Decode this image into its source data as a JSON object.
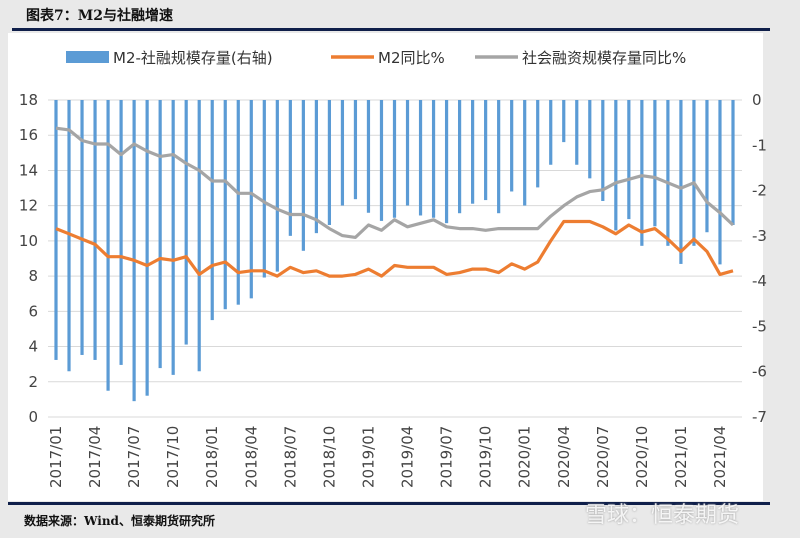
{
  "header": {
    "title": "图表7：M2与社融增速"
  },
  "footer": {
    "source": "数据来源：Wind、恒泰期货研究所",
    "watermark": "雪球：恒泰期货"
  },
  "chart_data": {
    "type": "bar+line",
    "categories": [
      "2017/01",
      "2017/02",
      "2017/03",
      "2017/04",
      "2017/05",
      "2017/06",
      "2017/07",
      "2017/08",
      "2017/09",
      "2017/10",
      "2017/11",
      "2017/12",
      "2018/01",
      "2018/02",
      "2018/03",
      "2018/04",
      "2018/05",
      "2018/06",
      "2018/07",
      "2018/08",
      "2018/09",
      "2018/10",
      "2018/11",
      "2018/12",
      "2019/01",
      "2019/02",
      "2019/03",
      "2019/04",
      "2019/05",
      "2019/06",
      "2019/07",
      "2019/08",
      "2019/09",
      "2019/10",
      "2019/11",
      "2019/12",
      "2020/01",
      "2020/02",
      "2020/03",
      "2020/04",
      "2020/05",
      "2020/06",
      "2020/07",
      "2020/08",
      "2020/09",
      "2020/10",
      "2020/11",
      "2020/12",
      "2021/01",
      "2021/02",
      "2021/03",
      "2021/04",
      "2021/05"
    ],
    "x_tick_labels": [
      "2017/01",
      "2017/04",
      "2017/07",
      "2017/10",
      "2018/01",
      "2018/04",
      "2018/07",
      "2018/10",
      "2019/01",
      "2019/04",
      "2019/07",
      "2019/10",
      "2020/01",
      "2020/04",
      "2020/07",
      "2020/10",
      "2021/01",
      "2021/04"
    ],
    "left_axis": {
      "ylim": [
        0,
        18
      ],
      "ticks": [
        "0",
        "2",
        "4",
        "6",
        "8",
        "10",
        "12",
        "14",
        "16",
        "18"
      ]
    },
    "right_axis": {
      "ylim": [
        -7,
        0
      ],
      "ticks": [
        "0",
        "-1",
        "-2",
        "-3",
        "-4",
        "-5",
        "-6",
        "-7"
      ]
    },
    "grid": true,
    "legend_position": "top",
    "series": [
      {
        "name": "M2-社融规模存量(右轴)",
        "type": "bar",
        "axis": "right",
        "color": "#5b9bd5",
        "values": [
          -5.74,
          -5.99,
          -5.63,
          -5.74,
          -6.42,
          -5.85,
          -6.65,
          -6.53,
          -5.92,
          -6.07,
          -5.4,
          -5.99,
          -4.86,
          -4.62,
          -4.52,
          -4.38,
          -3.92,
          -3.79,
          -3.0,
          -3.33,
          -2.94,
          -2.76,
          -2.33,
          -2.19,
          -2.49,
          -2.67,
          -2.6,
          -2.33,
          -2.55,
          -2.6,
          -2.72,
          -2.5,
          -2.29,
          -2.21,
          -2.5,
          -2.02,
          -2.33,
          -1.93,
          -1.43,
          -0.93,
          -1.43,
          -1.73,
          -2.23,
          -2.88,
          -2.63,
          -3.22,
          -2.79,
          -3.22,
          -3.62,
          -3.22,
          -2.92,
          -3.63,
          -2.76
        ]
      },
      {
        "name": "M2同比%",
        "type": "line",
        "axis": "left",
        "color": "#ed7d31",
        "values": [
          10.7,
          10.4,
          10.1,
          9.8,
          9.1,
          9.1,
          8.9,
          8.6,
          9.0,
          8.9,
          9.1,
          8.1,
          8.6,
          8.8,
          8.2,
          8.3,
          8.3,
          8.0,
          8.5,
          8.2,
          8.3,
          8.0,
          8.0,
          8.1,
          8.4,
          8.0,
          8.6,
          8.5,
          8.5,
          8.5,
          8.1,
          8.2,
          8.4,
          8.4,
          8.2,
          8.7,
          8.4,
          8.8,
          10.0,
          11.1,
          11.1,
          11.1,
          10.8,
          10.4,
          10.9,
          10.5,
          10.7,
          10.1,
          9.4,
          10.1,
          9.4,
          8.1,
          8.3
        ]
      },
      {
        "name": "社会融资规模存量同比%",
        "type": "line",
        "axis": "left",
        "color": "#a5a5a5",
        "values": [
          16.4,
          16.3,
          15.7,
          15.5,
          15.5,
          14.9,
          15.5,
          15.1,
          14.8,
          14.9,
          14.4,
          14.0,
          13.4,
          13.4,
          12.7,
          12.7,
          12.2,
          11.8,
          11.5,
          11.5,
          11.2,
          10.7,
          10.3,
          10.2,
          10.9,
          10.6,
          11.2,
          10.8,
          11.0,
          11.2,
          10.8,
          10.7,
          10.7,
          10.6,
          10.7,
          10.7,
          10.7,
          10.7,
          11.4,
          12.0,
          12.5,
          12.8,
          12.9,
          13.3,
          13.5,
          13.7,
          13.6,
          13.3,
          13.0,
          13.3,
          12.2,
          11.6,
          10.9
        ]
      }
    ]
  }
}
